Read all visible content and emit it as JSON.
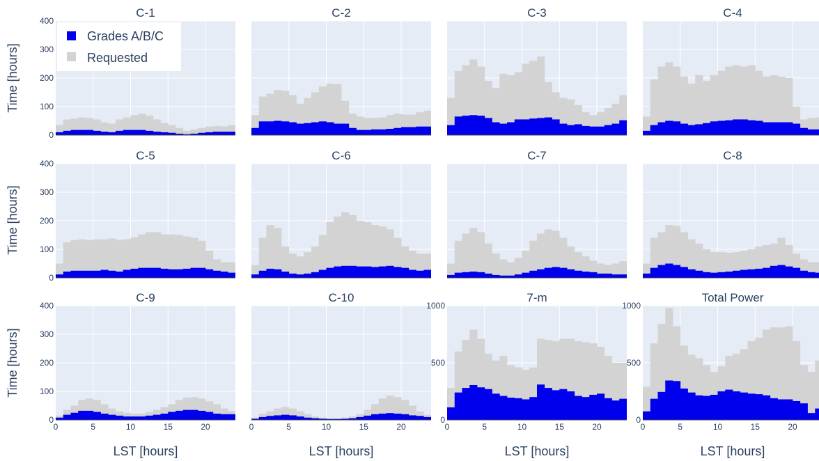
{
  "chart_data": {
    "type": "bar",
    "layout": "grid 3 rows x 4 columns, stacked/overlaid histograms",
    "xlabel": "LST [hours]",
    "ylabel": "Time [hours]",
    "xlim": [
      0,
      24
    ],
    "xticks": [
      0,
      5,
      10,
      15,
      20
    ],
    "bin_width_hours": 1,
    "legend": {
      "position": "top-left",
      "entries": [
        {
          "label": "Grades A/B/C",
          "color": "#0000ee"
        },
        {
          "label": "Requested",
          "color": "#d3d3d3"
        }
      ]
    },
    "colors": {
      "plot_background": "#e5ecf6",
      "gridline": "#ffffff",
      "text": "#2a3f5f"
    },
    "x": [
      0,
      1,
      2,
      3,
      4,
      5,
      6,
      7,
      8,
      9,
      10,
      11,
      12,
      13,
      14,
      15,
      16,
      17,
      18,
      19,
      20,
      21,
      22,
      23
    ],
    "panels": [
      {
        "title": "C-1",
        "ylim": [
          0,
          400
        ],
        "yticks": [
          0,
          100,
          200,
          300,
          400
        ],
        "requested": [
          35,
          55,
          58,
          62,
          60,
          55,
          45,
          40,
          55,
          62,
          70,
          75,
          68,
          55,
          42,
          35,
          25,
          15,
          20,
          25,
          30,
          32,
          30,
          35
        ],
        "grades": [
          10,
          15,
          18,
          18,
          18,
          15,
          12,
          10,
          15,
          18,
          18,
          18,
          15,
          12,
          10,
          8,
          5,
          3,
          5,
          8,
          10,
          12,
          12,
          12
        ]
      },
      {
        "title": "C-2",
        "ylim": [
          0,
          400
        ],
        "yticks": [
          0,
          100,
          200,
          300,
          400
        ],
        "requested": [
          70,
          135,
          145,
          158,
          155,
          140,
          110,
          130,
          150,
          170,
          180,
          178,
          120,
          75,
          65,
          60,
          60,
          62,
          70,
          75,
          72,
          72,
          80,
          85
        ],
        "grades": [
          25,
          48,
          48,
          50,
          48,
          45,
          40,
          42,
          45,
          48,
          45,
          40,
          40,
          25,
          18,
          18,
          20,
          20,
          22,
          25,
          28,
          28,
          30,
          30
        ]
      },
      {
        "title": "C-3",
        "ylim": [
          0,
          400
        ],
        "yticks": [
          0,
          100,
          200,
          300,
          400
        ],
        "requested": [
          130,
          225,
          245,
          265,
          240,
          190,
          165,
          215,
          210,
          220,
          250,
          260,
          275,
          185,
          150,
          130,
          125,
          105,
          80,
          70,
          80,
          95,
          110,
          140
        ],
        "grades": [
          35,
          65,
          68,
          70,
          68,
          60,
          45,
          40,
          45,
          55,
          55,
          58,
          60,
          62,
          55,
          40,
          35,
          38,
          32,
          30,
          30,
          35,
          40,
          52
        ]
      },
      {
        "title": "C-4",
        "ylim": [
          0,
          400
        ],
        "yticks": [
          0,
          100,
          200,
          300,
          400
        ],
        "requested": [
          65,
          195,
          240,
          255,
          240,
          205,
          180,
          210,
          190,
          210,
          225,
          240,
          245,
          240,
          245,
          225,
          205,
          210,
          205,
          200,
          100,
          55,
          60,
          62
        ],
        "grades": [
          15,
          35,
          45,
          50,
          48,
          40,
          35,
          38,
          42,
          48,
          50,
          52,
          55,
          55,
          52,
          50,
          45,
          45,
          45,
          45,
          40,
          25,
          20,
          20
        ]
      },
      {
        "title": "C-5",
        "ylim": [
          0,
          400
        ],
        "yticks": [
          0,
          100,
          200,
          300,
          400
        ],
        "requested": [
          50,
          125,
          132,
          135,
          132,
          135,
          135,
          138,
          133,
          135,
          142,
          152,
          160,
          160,
          152,
          152,
          150,
          145,
          140,
          130,
          95,
          65,
          55,
          55
        ],
        "grades": [
          12,
          22,
          25,
          25,
          25,
          25,
          28,
          25,
          22,
          28,
          32,
          35,
          35,
          35,
          32,
          30,
          30,
          32,
          35,
          35,
          30,
          25,
          22,
          18
        ]
      },
      {
        "title": "C-6",
        "ylim": [
          0,
          400
        ],
        "yticks": [
          0,
          100,
          200,
          300,
          400
        ],
        "requested": [
          45,
          140,
          185,
          175,
          110,
          85,
          75,
          90,
          110,
          150,
          195,
          215,
          230,
          220,
          200,
          195,
          185,
          180,
          170,
          140,
          110,
          95,
          85,
          85
        ],
        "grades": [
          12,
          25,
          32,
          30,
          22,
          15,
          12,
          15,
          20,
          28,
          35,
          40,
          42,
          42,
          40,
          40,
          38,
          40,
          42,
          38,
          35,
          28,
          25,
          28
        ]
      },
      {
        "title": "C-7",
        "ylim": [
          0,
          400
        ],
        "yticks": [
          0,
          100,
          200,
          300,
          400
        ],
        "requested": [
          50,
          130,
          155,
          175,
          160,
          120,
          85,
          65,
          55,
          70,
          95,
          130,
          155,
          170,
          165,
          140,
          110,
          90,
          75,
          60,
          50,
          45,
          50,
          58
        ],
        "grades": [
          10,
          18,
          20,
          22,
          20,
          15,
          10,
          8,
          8,
          12,
          18,
          25,
          30,
          35,
          38,
          35,
          30,
          25,
          22,
          20,
          15,
          15,
          12,
          12
        ]
      },
      {
        "title": "C-8",
        "ylim": [
          0,
          400
        ],
        "yticks": [
          0,
          100,
          200,
          300,
          400
        ],
        "requested": [
          50,
          140,
          160,
          185,
          182,
          160,
          135,
          120,
          100,
          90,
          90,
          88,
          90,
          95,
          100,
          110,
          115,
          120,
          140,
          115,
          85,
          65,
          55,
          55
        ],
        "grades": [
          15,
          35,
          45,
          50,
          45,
          38,
          30,
          25,
          20,
          18,
          20,
          22,
          25,
          28,
          30,
          32,
          35,
          42,
          45,
          40,
          35,
          25,
          20,
          18
        ]
      },
      {
        "title": "C-9",
        "ylim": [
          0,
          400
        ],
        "yticks": [
          0,
          100,
          200,
          300,
          400
        ],
        "requested": [
          15,
          35,
          50,
          70,
          75,
          70,
          55,
          40,
          30,
          25,
          22,
          22,
          28,
          35,
          45,
          55,
          70,
          78,
          80,
          75,
          65,
          55,
          40,
          32
        ],
        "grades": [
          8,
          18,
          25,
          32,
          32,
          28,
          22,
          18,
          15,
          12,
          12,
          12,
          15,
          18,
          22,
          28,
          32,
          35,
          35,
          32,
          28,
          22,
          20,
          20
        ]
      },
      {
        "title": "C-10",
        "ylim": [
          0,
          400
        ],
        "yticks": [
          0,
          100,
          200,
          300,
          400
        ],
        "requested": [
          8,
          22,
          30,
          40,
          45,
          40,
          30,
          20,
          12,
          8,
          6,
          6,
          8,
          12,
          20,
          35,
          55,
          75,
          85,
          80,
          70,
          50,
          30,
          18
        ],
        "grades": [
          4,
          10,
          14,
          16,
          18,
          16,
          12,
          8,
          6,
          4,
          3,
          3,
          4,
          6,
          10,
          15,
          20,
          22,
          24,
          22,
          20,
          16,
          14,
          10
        ]
      },
      {
        "title": "7-m",
        "ylim": [
          0,
          1000
        ],
        "yticks": [
          0,
          500,
          1000
        ],
        "requested": [
          280,
          600,
          700,
          790,
          710,
          580,
          520,
          560,
          480,
          460,
          440,
          460,
          710,
          700,
          690,
          710,
          710,
          690,
          680,
          670,
          640,
          560,
          500,
          500
        ],
        "grades": [
          110,
          240,
          280,
          305,
          285,
          270,
          230,
          210,
          195,
          190,
          180,
          200,
          310,
          280,
          260,
          270,
          250,
          210,
          200,
          220,
          230,
          190,
          170,
          185
        ]
      },
      {
        "title": "Total Power",
        "ylim": [
          0,
          1000
        ],
        "yticks": [
          0,
          500,
          1000
        ],
        "requested": [
          290,
          670,
          840,
          980,
          820,
          650,
          570,
          540,
          480,
          420,
          470,
          560,
          580,
          620,
          690,
          720,
          790,
          810,
          810,
          820,
          690,
          480,
          420,
          520
        ],
        "grades": [
          75,
          185,
          245,
          345,
          340,
          275,
          240,
          215,
          210,
          220,
          250,
          265,
          250,
          240,
          230,
          225,
          215,
          190,
          180,
          180,
          165,
          145,
          60,
          100
        ]
      }
    ]
  }
}
